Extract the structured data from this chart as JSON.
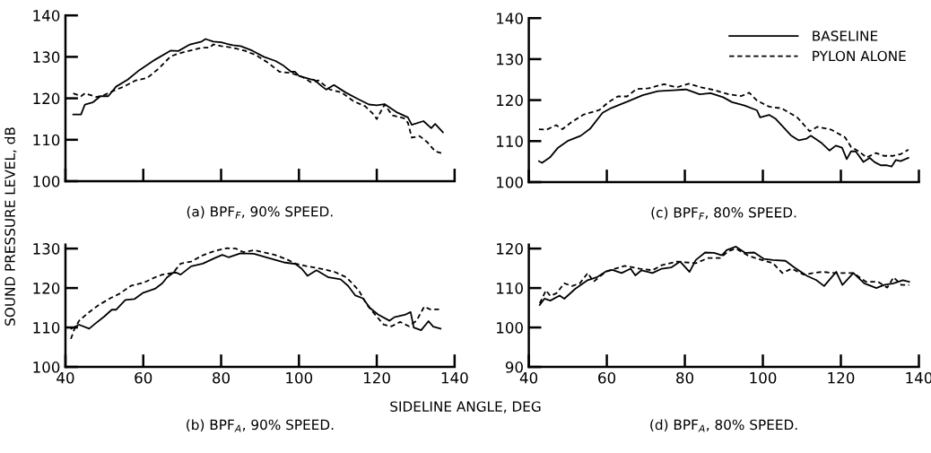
{
  "chart_data": [
    {
      "type": "line",
      "title": "(a) BPF$_{F}$, 90% SPEED.",
      "ylabel": "SOUND PRESSURE LEVEL, dB",
      "xlim": [
        40,
        140
      ],
      "xticks": [
        40,
        60,
        80,
        100,
        120,
        140
      ],
      "ylim": [
        100,
        140
      ],
      "yticks": [
        100,
        110,
        120,
        130,
        140
      ],
      "tick_labels": "y",
      "grid": false,
      "legend": false,
      "series": [
        {
          "color": "#000000",
          "line_style": "solid",
          "x": [
            42,
            44,
            45,
            47,
            49,
            51,
            53,
            56,
            59,
            63,
            67,
            69,
            72,
            75,
            76,
            78,
            80,
            83,
            85,
            88,
            91,
            94,
            96,
            98,
            99,
            100,
            103,
            104,
            106,
            107,
            109,
            112,
            115,
            118,
            120,
            122,
            125,
            128,
            129,
            132,
            134,
            135,
            137
          ],
          "values": [
            116.1,
            116.1,
            118.5,
            119,
            120.5,
            120.5,
            122.8,
            124.5,
            126.8,
            129.3,
            131.5,
            131.4,
            133,
            133.7,
            134.3,
            133.7,
            133.5,
            132.8,
            132.6,
            131.5,
            130,
            129,
            127.9,
            126.4,
            126.4,
            125.4,
            124.6,
            124.4,
            122.8,
            122.1,
            123.2,
            121.4,
            119.9,
            118.5,
            118.3,
            118.6,
            116.7,
            115.4,
            113.6,
            114.5,
            112.8,
            113.8,
            111.8
          ]
        },
        {
          "color": "#000000",
          "line_style": "dashed",
          "x": [
            42,
            44,
            45,
            48,
            50,
            53,
            55,
            58,
            61,
            64,
            67,
            69,
            72,
            75,
            77,
            78,
            80,
            83,
            86,
            89,
            92,
            95,
            98,
            101,
            103,
            105,
            108,
            111,
            114,
            117,
            119,
            120,
            122,
            124,
            127,
            128,
            129,
            131,
            133,
            135,
            137
          ],
          "values": [
            121.2,
            120.5,
            121.2,
            120.3,
            120.8,
            122.1,
            122.8,
            124.3,
            124.9,
            127.2,
            130.1,
            130.8,
            131.5,
            132.2,
            132.2,
            133,
            132.6,
            132.2,
            131.5,
            130.4,
            128.6,
            126.4,
            126.1,
            125.1,
            123.9,
            124.3,
            122.1,
            121.4,
            119.3,
            118.1,
            116.3,
            115,
            118.5,
            115.9,
            115.2,
            114.1,
            110.5,
            110.9,
            109.4,
            107.2,
            106.7
          ]
        }
      ]
    },
    {
      "type": "line",
      "title": "(b) BPF$_{A}$, 90% SPEED.",
      "xlabel": "SIDELINE ANGLE, DEG",
      "xlim": [
        40,
        140
      ],
      "xticks": [
        40,
        60,
        80,
        100,
        120,
        140
      ],
      "ylim": [
        100,
        131
      ],
      "yticks": [
        100,
        110,
        120,
        130
      ],
      "grid": false,
      "legend": false,
      "series": [
        {
          "color": "#000000",
          "line_style": "solid",
          "x": [
            41.5,
            43.5,
            46.1,
            47.7,
            50,
            51.9,
            53,
            55.4,
            57.7,
            60,
            63,
            64.9,
            66.1,
            68,
            69.6,
            72.3,
            75.3,
            78.4,
            80.3,
            81.9,
            85,
            88.4,
            92.2,
            96.1,
            99.1,
            100.7,
            102.2,
            104.5,
            107.6,
            110.7,
            112.6,
            114.5,
            116.4,
            118.3,
            120.3,
            123.3,
            124.5,
            127.2,
            128.7,
            129.5,
            131.4,
            133.3,
            134.5,
            136.4
          ],
          "values": [
            109.7,
            110.7,
            109.7,
            111,
            112.8,
            114.5,
            114.5,
            117,
            117.2,
            118.8,
            119.8,
            121.2,
            122.7,
            124.1,
            123.4,
            125.5,
            126.2,
            127.6,
            128.4,
            127.8,
            128.8,
            128.7,
            127.6,
            126.5,
            126.1,
            124.9,
            123.1,
            124.5,
            122.7,
            122.2,
            120.6,
            118.1,
            117.4,
            114.9,
            113.3,
            111.7,
            112.6,
            113.2,
            113.9,
            110,
            109.3,
            111.6,
            110.2,
            109.7
          ]
        },
        {
          "color": "#000000",
          "line_style": "dashed",
          "x": [
            41.4,
            42.3,
            43.5,
            46.1,
            48.4,
            51.5,
            53.8,
            56.9,
            60,
            63,
            64.9,
            67.6,
            69.6,
            72.3,
            75.3,
            78.4,
            81.5,
            83.8,
            85.7,
            88.4,
            90.7,
            93.8,
            96.8,
            99.1,
            102.2,
            106,
            109.1,
            112.2,
            115.3,
            117.6,
            120.3,
            121.8,
            123.8,
            126,
            128.3,
            130.2,
            132.2,
            133.7,
            136
          ],
          "values": [
            107.1,
            109.6,
            111.7,
            113.9,
            115.6,
            117.4,
            118.5,
            120.6,
            121.3,
            122.7,
            123.4,
            123.8,
            126.2,
            126.7,
            128.3,
            129.4,
            130.1,
            130,
            129.1,
            129.6,
            129.1,
            128.4,
            127.3,
            126.2,
            125.5,
            124.8,
            124.1,
            122.7,
            119.5,
            115.6,
            112.4,
            110.7,
            110.3,
            111.4,
            110.3,
            111.7,
            115.3,
            114.6,
            114.6
          ]
        }
      ]
    },
    {
      "type": "line",
      "title": "(c) BPF$_{F}$, 80% SPEED.",
      "xlim": [
        40,
        140
      ],
      "xticks": [
        40,
        60,
        80,
        100,
        120,
        140
      ],
      "ylim": [
        100,
        140
      ],
      "yticks": [
        100,
        110,
        120,
        130,
        140
      ],
      "tick_labels": "y",
      "grid": false,
      "legend": "top right",
      "series": [
        {
          "name": "BASELINE",
          "color": "#000000",
          "line_style": "solid",
          "x": [
            42.6,
            43.4,
            45.4,
            47.4,
            50.1,
            53.3,
            55.7,
            58.9,
            61.2,
            65.2,
            69.2,
            73.1,
            77.1,
            80.3,
            83.8,
            86.6,
            89.8,
            92.1,
            95.3,
            98.5,
            99.3,
            101.6,
            103.2,
            107.2,
            109.2,
            111.2,
            112.3,
            115.1,
            117.1,
            118.7,
            120.3,
            121.5,
            122.6,
            123.8,
            125.8,
            127.4,
            128.6,
            130.2,
            131.8,
            133,
            134.1,
            135.3,
            137.3
          ],
          "values": [
            105.1,
            104.7,
            106,
            108.3,
            110.1,
            111.3,
            113,
            116.9,
            118.1,
            119.6,
            121.2,
            122.2,
            122.4,
            122.6,
            121.4,
            121.7,
            120.7,
            119.5,
            118.7,
            117.5,
            115.8,
            116.4,
            115.5,
            111.4,
            110.2,
            110.6,
            111.3,
            109.5,
            107.7,
            108.9,
            108.4,
            105.6,
            107.5,
            107.5,
            104.9,
            105.9,
            104.9,
            104.1,
            104.1,
            103.8,
            105.4,
            105.1,
            105.9
          ]
        },
        {
          "name": "PYLON ALONE",
          "color": "#000000",
          "line_style": "dashed",
          "x": [
            42.6,
            44.6,
            47,
            48.6,
            50.9,
            54.1,
            58.1,
            60.4,
            62.8,
            65.2,
            67.6,
            70.7,
            74.7,
            77.9,
            81,
            84.2,
            87.4,
            91.3,
            94.5,
            96.5,
            98.5,
            101.6,
            104.8,
            108.8,
            112,
            114,
            117.5,
            121.1,
            122.6,
            124.6,
            126.6,
            129,
            131,
            133.3,
            135.3,
            137.3
          ],
          "values": [
            112.9,
            112.8,
            113.9,
            112.9,
            114.6,
            116.5,
            117.6,
            119.5,
            120.9,
            120.9,
            122.7,
            122.9,
            123.9,
            123.1,
            124,
            123.1,
            122.5,
            121.4,
            121,
            121.8,
            119.9,
            118.4,
            118,
            115.8,
            112.4,
            113.5,
            112.8,
            110.9,
            108.6,
            107.5,
            106,
            107.1,
            106.4,
            106.4,
            106.8,
            107.9
          ]
        }
      ]
    },
    {
      "type": "line",
      "title": "(d) BPF$_{A}$, 80% SPEED.",
      "xlim": [
        40,
        140
      ],
      "xticks": [
        40,
        60,
        80,
        100,
        120,
        140
      ],
      "ylim": [
        90,
        121
      ],
      "yticks": [
        90,
        100,
        110,
        120
      ],
      "grid": false,
      "legend": false,
      "series": [
        {
          "color": "#000000",
          "line_style": "solid",
          "x": [
            42.8,
            44,
            45.5,
            47.9,
            49.1,
            51.9,
            55.1,
            57.4,
            59.8,
            61.4,
            63.8,
            66.1,
            67.3,
            68.9,
            71.7,
            74.1,
            76.5,
            78.8,
            81.2,
            82.8,
            85.2,
            87.5,
            89.5,
            90.7,
            93.1,
            95.5,
            97.8,
            100.2,
            102.6,
            105.8,
            108.1,
            111.3,
            113.7,
            115.7,
            118.8,
            120.4,
            123.2,
            126,
            129.1,
            131.1,
            133.5,
            135.9,
            137.5
          ],
          "values": [
            105.7,
            107.3,
            106.8,
            108.1,
            107.3,
            109.8,
            112,
            112.7,
            114.2,
            114.6,
            113.8,
            114.9,
            113.2,
            114.5,
            113.8,
            114.9,
            115.2,
            116.7,
            114.1,
            117.1,
            119,
            118.9,
            118.3,
            119.6,
            120.5,
            118.9,
            119,
            117.4,
            117.1,
            116.9,
            115.2,
            113.1,
            112,
            110.5,
            114.1,
            110.8,
            113.8,
            111.2,
            110,
            110.8,
            111.2,
            112,
            111.6
          ]
        },
        {
          "color": "#000000",
          "line_style": "dashed",
          "x": [
            42.8,
            44.4,
            45.5,
            47.1,
            49.1,
            51.1,
            53.1,
            55.1,
            56.6,
            59.8,
            64.6,
            68.5,
            71.7,
            74.1,
            78,
            82.8,
            86,
            89.1,
            91.1,
            93.1,
            96.3,
            98.6,
            102.6,
            105,
            107.4,
            110.5,
            112.9,
            115.3,
            118.4,
            123.2,
            126.4,
            129.5,
            131.9,
            133.5,
            135.5,
            137.5
          ],
          "values": [
            106.1,
            109.4,
            108,
            108.7,
            111.2,
            110.5,
            111.2,
            113.8,
            111.6,
            114.2,
            115.6,
            114.9,
            114.5,
            115.8,
            116.7,
            116.3,
            117.6,
            117.6,
            119.3,
            120,
            118.2,
            117.4,
            116.3,
            113.8,
            114.9,
            113.4,
            113.8,
            114.1,
            113.8,
            113.8,
            111.6,
            111.6,
            110.1,
            112.7,
            110.8,
            110.8
          ]
        }
      ]
    }
  ]
}
